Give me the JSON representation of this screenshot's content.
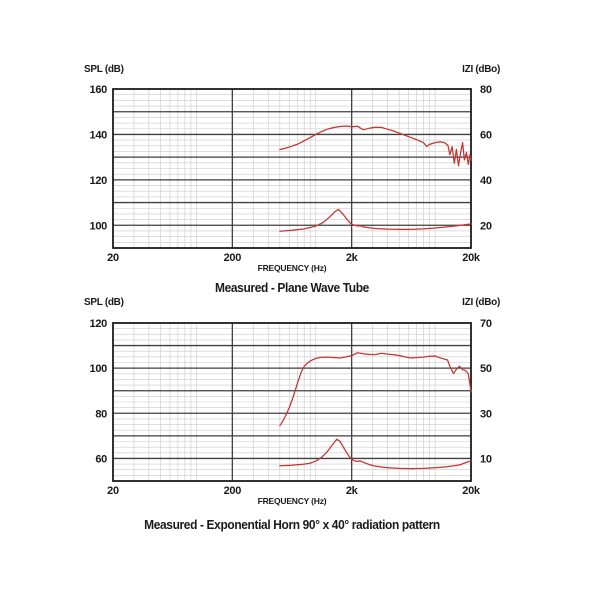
{
  "page": {
    "background": "#ffffff"
  },
  "chart_data": [
    {
      "type": "line",
      "title": "Measured - Plane Wave Tube",
      "xlabel": "FREQUENCY (Hz)",
      "ylabel_left": "SPL (dB)",
      "ylabel_right": "IZI (dBo)",
      "x_scale": "log",
      "x_range": [
        20,
        20000
      ],
      "x_ticks": [
        {
          "value": 20,
          "label": "20"
        },
        {
          "value": 200,
          "label": "200"
        },
        {
          "value": 2000,
          "label": "2k"
        },
        {
          "value": 20000,
          "label": "20k"
        }
      ],
      "y_left_range": [
        90,
        160
      ],
      "y_left_ticks": [
        160,
        140,
        120,
        100
      ],
      "y_right_ticks": [
        80,
        60,
        40,
        20
      ],
      "y_right_offset": -80,
      "grid": {
        "major_step_db": 10,
        "minor_step_db": 2.5,
        "x_minor": "log-decade"
      },
      "legend": "none",
      "series": [
        {
          "name": "SPL response",
          "axis": "left",
          "color": "#c43430",
          "points": [
            [
              500,
              133.3
            ],
            [
              560,
              134.0
            ],
            [
              630,
              134.8
            ],
            [
              710,
              135.8
            ],
            [
              800,
              137.2
            ],
            [
              900,
              138.6
            ],
            [
              1000,
              140.0
            ],
            [
              1120,
              141.3
            ],
            [
              1250,
              142.3
            ],
            [
              1400,
              143.0
            ],
            [
              1600,
              143.5
            ],
            [
              1800,
              143.7
            ],
            [
              2000,
              143.4
            ],
            [
              2240,
              143.6
            ],
            [
              2500,
              142.1
            ],
            [
              2800,
              142.7
            ],
            [
              3150,
              143.2
            ],
            [
              3550,
              143.1
            ],
            [
              4000,
              142.3
            ],
            [
              4500,
              141.5
            ],
            [
              5000,
              140.6
            ],
            [
              5600,
              139.6
            ],
            [
              6300,
              138.6
            ],
            [
              7100,
              137.6
            ],
            [
              8000,
              136.4
            ],
            [
              8500,
              134.7
            ],
            [
              9000,
              135.6
            ],
            [
              10000,
              136.4
            ],
            [
              11000,
              136.8
            ],
            [
              12000,
              136.4
            ],
            [
              12800,
              135.2
            ],
            [
              13300,
              131.0
            ],
            [
              13900,
              134.6
            ],
            [
              14500,
              127.3
            ],
            [
              15100,
              133.4
            ],
            [
              15700,
              126.2
            ],
            [
              16400,
              132.2
            ],
            [
              17000,
              136.4
            ],
            [
              17600,
              128.8
            ],
            [
              18300,
              132.0
            ],
            [
              19000,
              126.8
            ],
            [
              19600,
              131.2
            ],
            [
              20000,
              128.6
            ]
          ]
        },
        {
          "name": "Impedance |Z|",
          "axis": "right",
          "color": "#c43430",
          "points": [
            [
              500,
              17.4
            ],
            [
              630,
              17.8
            ],
            [
              800,
              18.4
            ],
            [
              1000,
              19.6
            ],
            [
              1150,
              21.2
            ],
            [
              1300,
              23.5
            ],
            [
              1450,
              26.0
            ],
            [
              1550,
              27.0
            ],
            [
              1700,
              24.8
            ],
            [
              1850,
              22.3
            ],
            [
              2000,
              20.4
            ],
            [
              2240,
              19.7
            ],
            [
              2360,
              19.8
            ],
            [
              2500,
              19.3
            ],
            [
              2800,
              18.9
            ],
            [
              3150,
              18.6
            ],
            [
              4000,
              18.3
            ],
            [
              5000,
              18.2
            ],
            [
              6300,
              18.2
            ],
            [
              8000,
              18.4
            ],
            [
              10000,
              18.8
            ],
            [
              12500,
              19.3
            ],
            [
              16000,
              19.9
            ],
            [
              20000,
              20.6
            ]
          ]
        }
      ]
    },
    {
      "type": "line",
      "title": "Measured - Exponential Horn 90° x 40° radiation pattern",
      "xlabel": "FREQUENCY (Hz)",
      "ylabel_left": "SPL (dB)",
      "ylabel_right": "IZI (dBo)",
      "x_scale": "log",
      "x_range": [
        20,
        20000
      ],
      "x_ticks": [
        {
          "value": 20,
          "label": "20"
        },
        {
          "value": 200,
          "label": "200"
        },
        {
          "value": 2000,
          "label": "2k"
        },
        {
          "value": 20000,
          "label": "20k"
        }
      ],
      "y_left_range": [
        50,
        120
      ],
      "y_left_ticks": [
        120,
        100,
        80,
        60
      ],
      "y_right_ticks": [
        70,
        50,
        30,
        10
      ],
      "y_right_offset": -50,
      "grid": {
        "major_step_db": 10,
        "minor_step_db": 2.5,
        "x_minor": "log-decade"
      },
      "legend": "none",
      "series": [
        {
          "name": "SPL response",
          "axis": "left",
          "color": "#c43430",
          "points": [
            [
              500,
              74.5
            ],
            [
              530,
              76.5
            ],
            [
              560,
              79.0
            ],
            [
              600,
              82.5
            ],
            [
              640,
              86.5
            ],
            [
              680,
              91.0
            ],
            [
              720,
              95.0
            ],
            [
              760,
              98.5
            ],
            [
              800,
              100.8
            ],
            [
              850,
              102.2
            ],
            [
              900,
              103.2
            ],
            [
              1000,
              104.3
            ],
            [
              1120,
              104.8
            ],
            [
              1250,
              104.9
            ],
            [
              1400,
              104.7
            ],
            [
              1600,
              104.5
            ],
            [
              1800,
              105.0
            ],
            [
              2000,
              105.6
            ],
            [
              2240,
              106.8
            ],
            [
              2500,
              106.4
            ],
            [
              2800,
              106.1
            ],
            [
              3150,
              106.0
            ],
            [
              3550,
              106.6
            ],
            [
              4000,
              106.2
            ],
            [
              4500,
              105.9
            ],
            [
              5000,
              105.6
            ],
            [
              5600,
              105.0
            ],
            [
              6300,
              104.5
            ],
            [
              7100,
              104.7
            ],
            [
              8000,
              104.9
            ],
            [
              9000,
              105.3
            ],
            [
              10000,
              105.4
            ],
            [
              11000,
              104.6
            ],
            [
              12000,
              104.0
            ],
            [
              12700,
              103.6
            ],
            [
              13500,
              100.0
            ],
            [
              14300,
              97.6
            ],
            [
              15000,
              99.3
            ],
            [
              16000,
              100.8
            ],
            [
              17000,
              99.3
            ],
            [
              18000,
              99.0
            ],
            [
              19000,
              97.5
            ],
            [
              19500,
              93.5
            ],
            [
              20000,
              89.6
            ]
          ]
        },
        {
          "name": "Impedance |Z|",
          "axis": "right",
          "color": "#c43430",
          "points": [
            [
              500,
              6.8
            ],
            [
              630,
              7.0
            ],
            [
              800,
              7.5
            ],
            [
              900,
              7.9
            ],
            [
              1000,
              8.8
            ],
            [
              1120,
              10.5
            ],
            [
              1250,
              13.0
            ],
            [
              1400,
              16.5
            ],
            [
              1500,
              18.5
            ],
            [
              1600,
              17.5
            ],
            [
              1750,
              14.0
            ],
            [
              1900,
              11.0
            ],
            [
              2000,
              9.6
            ],
            [
              2120,
              8.9
            ],
            [
              2240,
              8.7
            ],
            [
              2360,
              8.9
            ],
            [
              2500,
              8.3
            ],
            [
              2800,
              7.3
            ],
            [
              3150,
              6.6
            ],
            [
              3550,
              6.2
            ],
            [
              4000,
              5.9
            ],
            [
              5000,
              5.6
            ],
            [
              6300,
              5.5
            ],
            [
              8000,
              5.6
            ],
            [
              10000,
              5.9
            ],
            [
              12500,
              6.3
            ],
            [
              16000,
              7.1
            ],
            [
              20000,
              9.0
            ]
          ]
        }
      ]
    }
  ]
}
